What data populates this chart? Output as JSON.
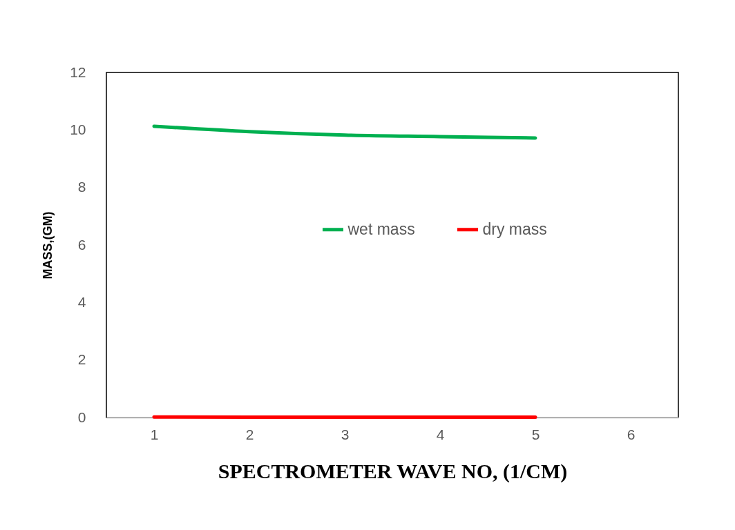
{
  "chart_data": {
    "type": "line",
    "xlabel": "SPECTROMETER WAVE NO, (1/CM)",
    "ylabel": "MASS,(GM)",
    "categories": [
      "1",
      "2",
      "3",
      "4",
      "5",
      "6"
    ],
    "series": [
      {
        "name": "wet mass",
        "color": "#00b050",
        "values": [
          10.13,
          9.94,
          9.82,
          9.77,
          9.72,
          null
        ]
      },
      {
        "name": "dry mass",
        "color": "#ff0000",
        "values": [
          0.02,
          0.01,
          0.01,
          0.01,
          0.01,
          null
        ]
      }
    ],
    "ylim": [
      0,
      12
    ],
    "yticks": [
      0,
      2,
      4,
      6,
      8,
      10,
      12
    ],
    "legend": "right",
    "grid": false,
    "marker": "none",
    "line_style": "solid"
  }
}
